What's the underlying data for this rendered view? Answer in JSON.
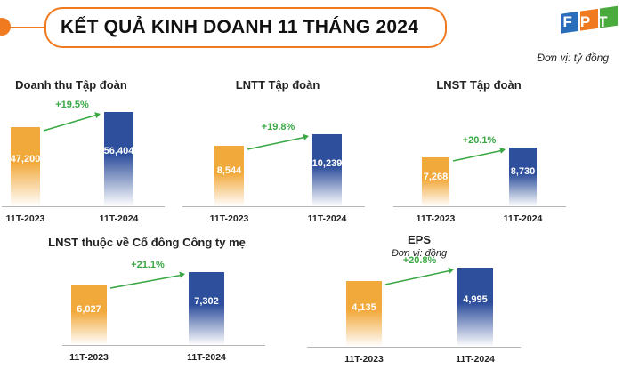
{
  "header": {
    "title": "KẾT QUẢ KINH DOANH 11 THÁNG 2024",
    "unit": "Đơn vị: tỷ đồng",
    "logo_text": "FPT"
  },
  "colors": {
    "accent": "#f07a1f",
    "bar_2023": "#f2a93b",
    "bar_2024": "#2e4f9c",
    "growth": "#3aa845",
    "logo_blue": "#2a6ebb",
    "logo_orange": "#f07a1f",
    "logo_green": "#4aab3d"
  },
  "chart_data": [
    {
      "type": "bar",
      "title": "Doanh thu Tập đoàn",
      "categories": [
        "11T-2023",
        "11T-2024"
      ],
      "values": [
        47200,
        56404
      ],
      "value_labels": [
        "47,200",
        "56,404"
      ],
      "growth": "+19.5%"
    },
    {
      "type": "bar",
      "title": "LNTT Tập đoàn",
      "categories": [
        "11T-2023",
        "11T-2024"
      ],
      "values": [
        8544,
        10239
      ],
      "value_labels": [
        "8,544",
        "10,239"
      ],
      "growth": "+19.8%"
    },
    {
      "type": "bar",
      "title": "LNST Tập đoàn",
      "categories": [
        "11T-2023",
        "11T-2024"
      ],
      "values": [
        7268,
        8730
      ],
      "value_labels": [
        "7,268",
        "8,730"
      ],
      "growth": "+20.1%"
    },
    {
      "type": "bar",
      "title": "LNST thuộc về Cổ đông Công ty mẹ",
      "categories": [
        "11T-2023",
        "11T-2024"
      ],
      "values": [
        6027,
        7302
      ],
      "value_labels": [
        "6,027",
        "7,302"
      ],
      "growth": "+21.1%"
    },
    {
      "type": "bar",
      "title": "EPS",
      "subtitle": "Đơn vị: đồng",
      "categories": [
        "11T-2023",
        "11T-2024"
      ],
      "values": [
        4135,
        4995
      ],
      "value_labels": [
        "4,135",
        "4,995"
      ],
      "growth": "+20.8%"
    }
  ]
}
